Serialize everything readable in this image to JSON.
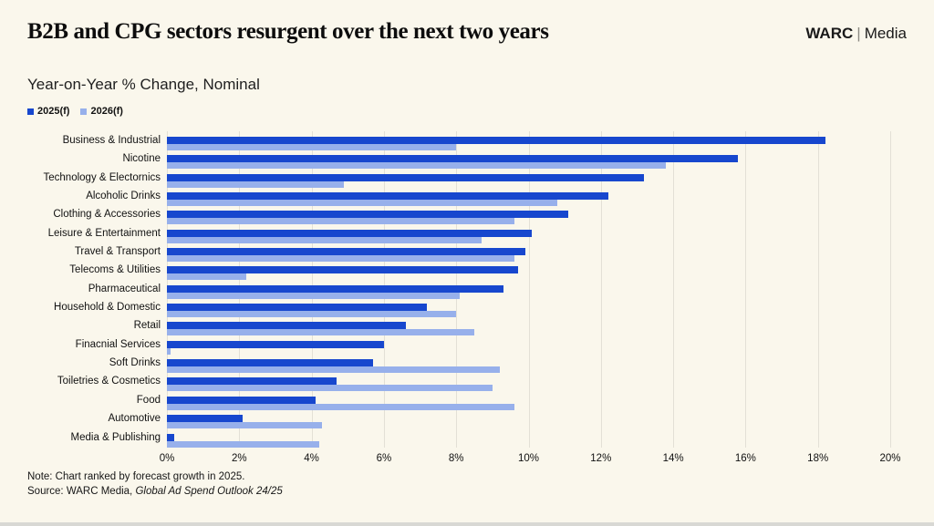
{
  "header": {
    "title": "B2B and CPG sectors resurgent over the next two years",
    "brand": {
      "name": "WARC",
      "separator": "|",
      "suffix": "Media"
    }
  },
  "subtitle": "Year-on-Year % Change, Nominal",
  "legend": [
    {
      "label": "2025(f)",
      "color": "#1747CE"
    },
    {
      "label": "2026(f)",
      "color": "#97B0EB"
    }
  ],
  "colors": {
    "background": "#FAF7EC",
    "bar_2025": "#1747CE",
    "bar_2026": "#97B0EB",
    "gridline": "#E3E0D6",
    "text": "#161616"
  },
  "chart_data": {
    "type": "bar",
    "orientation": "horizontal",
    "title": "B2B and CPG sectors resurgent over the next two years",
    "subtitle": "Year-on-Year % Change, Nominal",
    "categories": [
      "Business & Industrial",
      "Nicotine",
      "Technology & Electornics",
      "Alcoholic Drinks",
      "Clothing & Accessories",
      "Leisure & Entertainment",
      "Travel & Transport",
      "Telecoms & Utilities",
      "Pharmaceutical",
      "Household & Domestic",
      "Retail",
      "Finacnial Services",
      "Soft Drinks",
      "Toiletries & Cosmetics",
      "Food",
      "Automotive",
      "Media & Publishing"
    ],
    "series": [
      {
        "name": "2025(f)",
        "color": "#1747CE",
        "values": [
          18.2,
          15.8,
          13.2,
          12.2,
          11.1,
          10.1,
          9.9,
          9.7,
          9.3,
          7.2,
          6.6,
          6.0,
          5.7,
          4.7,
          4.1,
          2.1,
          0.2
        ]
      },
      {
        "name": "2026(f)",
        "color": "#97B0EB",
        "values": [
          8.0,
          13.8,
          4.9,
          10.8,
          9.6,
          8.7,
          9.6,
          2.2,
          8.1,
          8.0,
          8.5,
          0.1,
          9.2,
          9.0,
          9.6,
          4.3,
          4.2
        ]
      }
    ],
    "xlim": [
      0,
      20
    ],
    "x_ticks": [
      "0%",
      "2%",
      "4%",
      "6%",
      "8%",
      "10%",
      "12%",
      "14%",
      "16%",
      "18%",
      "20%"
    ],
    "grid": true,
    "legend_position": "top-left",
    "units": "percent"
  },
  "footer": {
    "note": "Note: Chart ranked by forecast growth in 2025.",
    "source_prefix": "Source: WARC Media, ",
    "source_italic": "Global Ad Spend Outlook 24/25"
  }
}
